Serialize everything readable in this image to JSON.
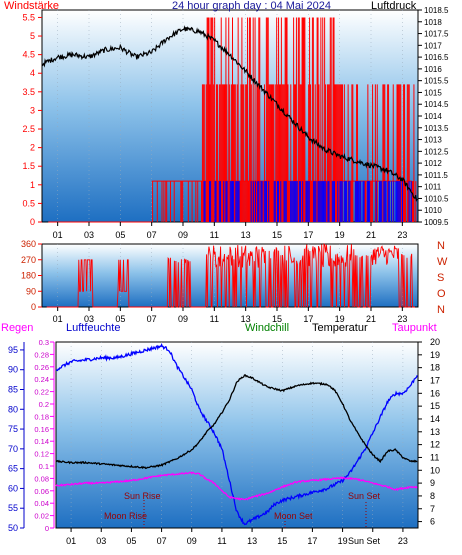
{
  "top_labels": {
    "windstaerke": "Windstärke",
    "title": "24 hour graph day : 04 Mai 2024",
    "luftdruck": "Luftdruck"
  },
  "bottom_labels": {
    "regen": "Regen",
    "luftfeuchte": "Luftfeuchte",
    "windchill": "Windchill",
    "temperatur": "Temperatur",
    "taupunkt": "Taupunkt"
  },
  "direction_labels": [
    "N",
    "W",
    "S",
    "O",
    "N"
  ],
  "annotations": {
    "sun_rise": "Sun Rise",
    "moon_rise": "Moon Rise",
    "moon_set": "Moon Set",
    "sun_set": "Sun Set",
    "sun_set_axis": "Sun Set"
  },
  "colors": {
    "wind_gust": "#ff0000",
    "wind_avg": "#0000ff",
    "pressure": "#000000",
    "humidity": "#0000ff",
    "temperature": "#000000",
    "dewpoint": "#ff00ff",
    "windchill": "#008000",
    "rain": "#ff00ff",
    "annotation": "#990000",
    "bg_top": "#ffffff",
    "bg_bottom": "#1e6fc2"
  },
  "chart_data": [
    {
      "type": "line",
      "subtitle": "24 hour graph day : 04 Mai 2024",
      "x_ticks": [
        "01",
        "03",
        "05",
        "07",
        "09",
        "11",
        "13",
        "15",
        "17",
        "19",
        "21",
        "23"
      ],
      "y_left_label": "Windstärke",
      "y_left_ticks": [
        "0",
        "0.5",
        "1",
        "1.5",
        "2",
        "2.5",
        "3",
        "3.5",
        "4",
        "4.5",
        "5",
        "5.5"
      ],
      "ylim_left": [
        0,
        5.7
      ],
      "y_right_label": "Luftdruck",
      "y_right_ticks": [
        "1009.5",
        "1010",
        "1010.5",
        "1011",
        "1011.5",
        "1012",
        "1012.5",
        "1013",
        "1013.5",
        "1014",
        "1014.5",
        "1015",
        "1015.5",
        "1016",
        "1016.5",
        "1017",
        "1017.5",
        "1018",
        "1018.5"
      ],
      "ylim_right": [
        1009.5,
        1018.5
      ],
      "series": [
        {
          "name": "Luftdruck",
          "axis": "right",
          "x": [
            0,
            1,
            2,
            3,
            4,
            5,
            6,
            7,
            8,
            9,
            10,
            11,
            12,
            13,
            14,
            15,
            16,
            17,
            18,
            19,
            20,
            21,
            22,
            23,
            24
          ],
          "values": [
            1016.2,
            1016.5,
            1016.6,
            1016.5,
            1016.8,
            1016.9,
            1016.5,
            1016.7,
            1017.3,
            1017.7,
            1017.6,
            1017.2,
            1016.6,
            1015.9,
            1015.2,
            1014.5,
            1013.8,
            1013.1,
            1012.6,
            1012.3,
            1012.1,
            1011.9,
            1011.7,
            1011.3,
            1010.4
          ]
        }
      ]
    },
    {
      "type": "line",
      "x_ticks": [
        "01",
        "03",
        "05",
        "07",
        "09",
        "11",
        "13",
        "15",
        "17",
        "19",
        "21",
        "23"
      ],
      "y_ticks": [
        "0",
        "90",
        "180",
        "270",
        "360"
      ],
      "ylim": [
        0,
        360
      ]
    },
    {
      "type": "line",
      "x_ticks": [
        "01",
        "03",
        "05",
        "07",
        "09",
        "11",
        "13",
        "15",
        "17",
        "19",
        "21",
        "23"
      ],
      "y_left_ticks": [
        "50",
        "55",
        "60",
        "65",
        "70",
        "75",
        "80",
        "85",
        "90",
        "95"
      ],
      "ylim_left": [
        50,
        97
      ],
      "y_rain_ticks": [
        "0",
        "0.02",
        "0.04",
        "0.06",
        "0.08",
        "0.1",
        "0.12",
        "0.14",
        "0.16",
        "0.18",
        "0.2",
        "0.22",
        "0.24",
        "0.26",
        "0.28",
        "0.3"
      ],
      "ylim_rain": [
        0,
        0.3
      ],
      "y_right_ticks": [
        "6",
        "7",
        "8",
        "9",
        "10",
        "11",
        "12",
        "13",
        "14",
        "15",
        "16",
        "17",
        "18",
        "19",
        "20"
      ],
      "ylim_right": [
        5.5,
        20
      ],
      "series": [
        {
          "name": "Luftfeuchte",
          "axis": "left",
          "x": [
            0,
            1,
            2,
            3,
            4,
            5,
            6,
            7,
            7.5,
            8,
            9,
            9.5,
            10,
            10.5,
            11,
            11.5,
            12,
            12.5,
            13,
            13.5,
            14,
            14.5,
            15,
            16,
            17,
            18,
            18.5,
            19,
            19.5,
            20,
            20.5,
            21,
            21.5,
            22,
            22.5,
            23,
            23.5,
            24
          ],
          "values": [
            90,
            92,
            92.5,
            93,
            93,
            94,
            95,
            96,
            95,
            91,
            85,
            80,
            77,
            74,
            70,
            62,
            54,
            51,
            52,
            53,
            54,
            56,
            57,
            58,
            59,
            60,
            61,
            62,
            64,
            67,
            70,
            74,
            78,
            82,
            84,
            84,
            86,
            89
          ]
        },
        {
          "name": "Temperatur",
          "axis": "right",
          "x": [
            0,
            1,
            2,
            3,
            4,
            5,
            6,
            7,
            8,
            9,
            9.5,
            10,
            10.5,
            11,
            11.5,
            12,
            12.5,
            13,
            14,
            15,
            16,
            17,
            18,
            18.5,
            19,
            19.5,
            20,
            20.5,
            21,
            21.5,
            22,
            22.5,
            23,
            23.5,
            24
          ],
          "values": [
            10.7,
            10.6,
            10.6,
            10.5,
            10.4,
            10.3,
            10.2,
            10.4,
            10.9,
            11.6,
            12.2,
            13.0,
            13.6,
            14.5,
            15.5,
            16.9,
            17.4,
            17.2,
            16.5,
            16.2,
            16.6,
            16.8,
            16.7,
            16.2,
            15.2,
            13.9,
            12.9,
            12.0,
            11.2,
            10.7,
            11.5,
            11.6,
            11.0,
            10.7,
            10.7
          ]
        },
        {
          "name": "Taupunkt",
          "axis": "right",
          "x": [
            0,
            1,
            2,
            3,
            4,
            5,
            6,
            7,
            8,
            9,
            9.5,
            10,
            10.5,
            11,
            11.5,
            12,
            12.5,
            13,
            14,
            15,
            16,
            17,
            18,
            19,
            20,
            21,
            22,
            22.5,
            23,
            23.5,
            24
          ],
          "values": [
            8.8,
            8.9,
            9.0,
            9.0,
            9.1,
            9.2,
            9.4,
            9.6,
            9.7,
            9.8,
            9.7,
            9.3,
            9.0,
            8.4,
            7.9,
            7.8,
            7.7,
            7.9,
            8.2,
            8.7,
            9.1,
            9.2,
            9.3,
            9.4,
            9.3,
            9.0,
            8.7,
            8.5,
            8.6,
            8.7,
            8.7
          ]
        }
      ]
    }
  ]
}
